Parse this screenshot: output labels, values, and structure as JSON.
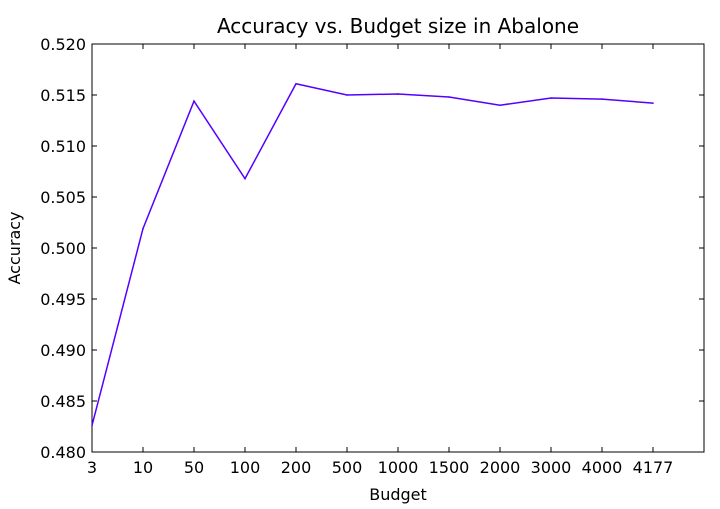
{
  "chart_data": {
    "type": "line",
    "title": "Accuracy vs. Budget size in Abalone",
    "xlabel": "Budget",
    "ylabel": "Accuracy",
    "categories": [
      "3",
      "10",
      "50",
      "100",
      "200",
      "500",
      "1000",
      "1500",
      "2000",
      "3000",
      "4000",
      "4177"
    ],
    "series": [
      {
        "values": [
          0.4826,
          0.5019,
          0.5144,
          0.5068,
          0.5161,
          0.515,
          0.5151,
          0.5148,
          0.514,
          0.5147,
          0.5146,
          0.5142
        ],
        "color": "#5500ff"
      }
    ],
    "ylim": [
      0.48,
      0.52
    ],
    "yticks": [
      "0.480",
      "0.485",
      "0.490",
      "0.495",
      "0.500",
      "0.505",
      "0.510",
      "0.515",
      "0.520"
    ],
    "grid": false,
    "legend": "none"
  }
}
